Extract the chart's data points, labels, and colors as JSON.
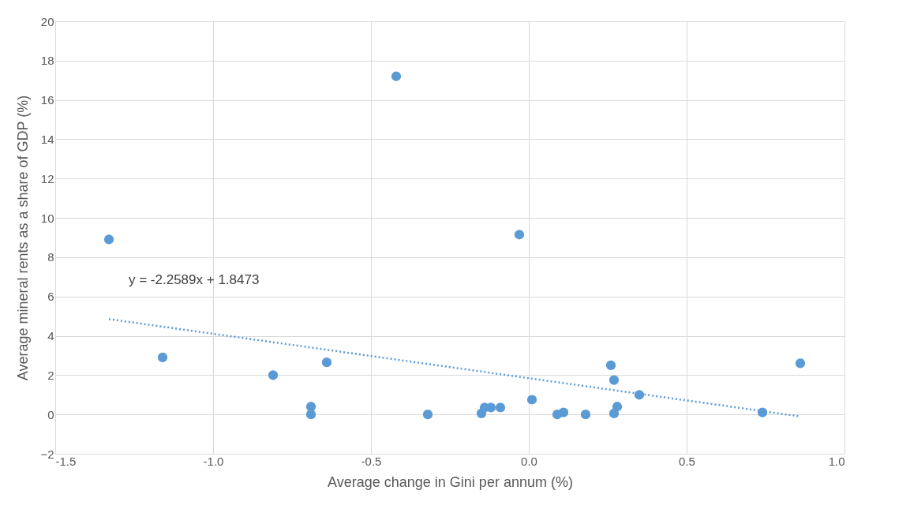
{
  "chart_data": {
    "type": "scatter",
    "xlabel": "Average change in Gini per annum (%)",
    "ylabel": "Average mineral rents as a share of GDP (%)",
    "xlim": [
      -1.5,
      1.0
    ],
    "xticks": [
      {
        "value": -1.5,
        "label": "-1.5"
      },
      {
        "value": -1.0,
        "label": "-1.0"
      },
      {
        "value": -0.5,
        "label": "-0.5"
      },
      {
        "value": 0,
        "label": "0.0"
      },
      {
        "value": 0.5,
        "label": "0.5"
      },
      {
        "value": 1.0,
        "label": "1.0"
      }
    ],
    "ylim": [
      -2,
      20
    ],
    "yticks": [
      -2,
      0,
      2,
      4,
      6,
      8,
      10,
      12,
      14,
      16,
      18,
      20
    ],
    "grid": true,
    "marker": "circle",
    "series": [
      {
        "color": "#5b9bd5",
        "x": [
          -1.33,
          -1.16,
          -0.81,
          -0.69,
          -0.69,
          -0.64,
          -0.42,
          -0.32,
          -0.15,
          -0.14,
          -0.12,
          -0.09,
          -0.03,
          0.01,
          0.09,
          0.11,
          0.18,
          0.26,
          0.27,
          0.27,
          0.28,
          0.35,
          0.74,
          0.86
        ],
        "values": [
          8.9,
          2.9,
          2.0,
          0.4,
          0.0,
          2.65,
          17.2,
          0.0,
          0.05,
          0.35,
          0.35,
          0.35,
          9.15,
          0.75,
          0.0,
          0.1,
          0.0,
          2.5,
          1.75,
          0.05,
          0.4,
          1.0,
          0.1,
          2.6
        ]
      },
      {
        "type": "line",
        "color": "#5b9bd5",
        "line_style": "dotted",
        "marker": "none",
        "x": [
          -1.33,
          0.86
        ],
        "values": [
          4.85,
          -0.1
        ]
      }
    ],
    "annotations": [
      {
        "text": "y = -2.2589x + 1.8473",
        "x": -1.33,
        "y": 4.85
      }
    ]
  }
}
